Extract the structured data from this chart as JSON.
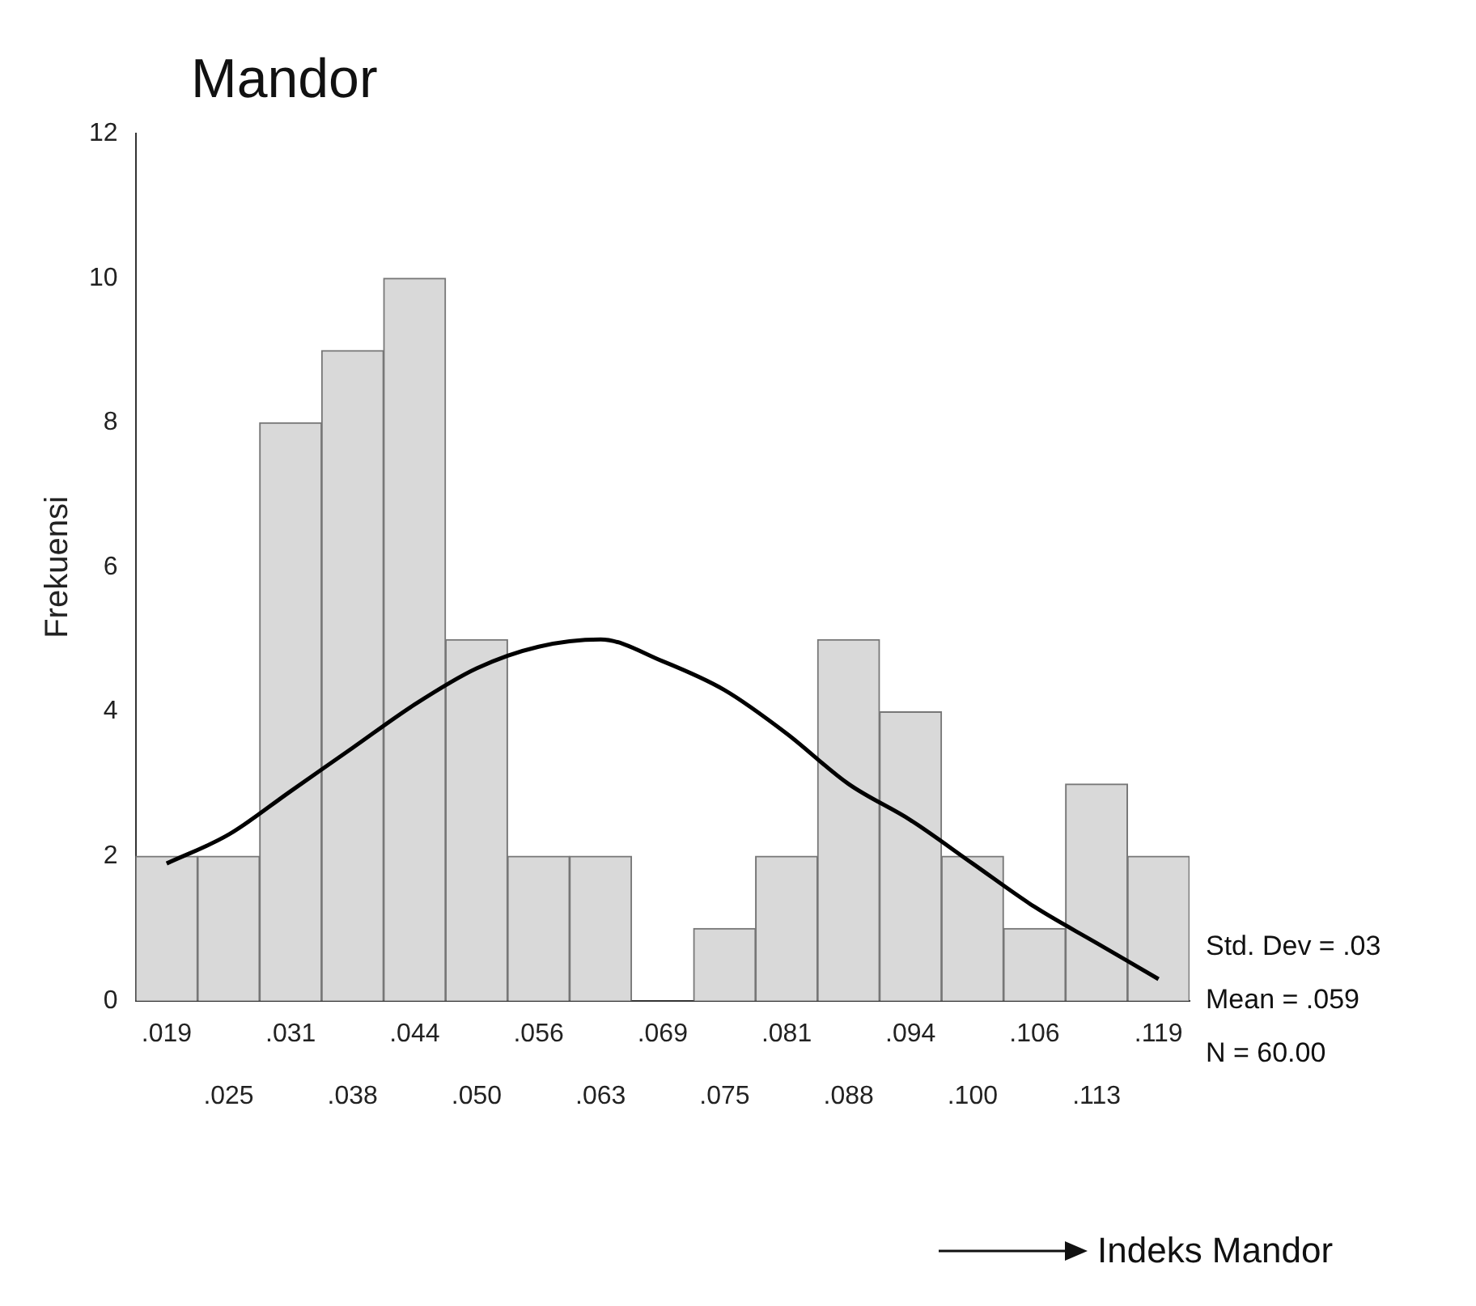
{
  "chart_data": {
    "type": "bar",
    "title": "Mandor",
    "xlabel": "Indeks Mandor",
    "ylabel": "Frekuensi",
    "categories": [
      ".019",
      ".025",
      ".031",
      ".038",
      ".044",
      ".050",
      ".056",
      ".063",
      ".069",
      ".075",
      ".081",
      ".088",
      ".094",
      ".100",
      ".106",
      ".113",
      ".119"
    ],
    "series": [
      {
        "color": "#d9d9d9",
        "values": [
          2,
          2,
          8,
          9,
          10,
          5,
          2,
          2,
          0,
          1,
          2,
          5,
          4,
          2,
          1,
          3,
          2
        ]
      },
      {
        "type": "line",
        "color": "#000000",
        "values": [
          1.9,
          2.3,
          2.9,
          3.5,
          4.1,
          4.6,
          4.9,
          5.0,
          4.7,
          4.3,
          3.7,
          3.0,
          2.5,
          1.9,
          1.3,
          0.8,
          0.3
        ]
      }
    ],
    "ylim": [
      0,
      12
    ],
    "yticks": [
      0,
      2,
      4,
      6,
      8,
      10,
      12
    ],
    "grid": false,
    "marker": "none",
    "annotations": [
      "Std. Dev = .03",
      "Mean = .059",
      "N = 60.00"
    ]
  }
}
